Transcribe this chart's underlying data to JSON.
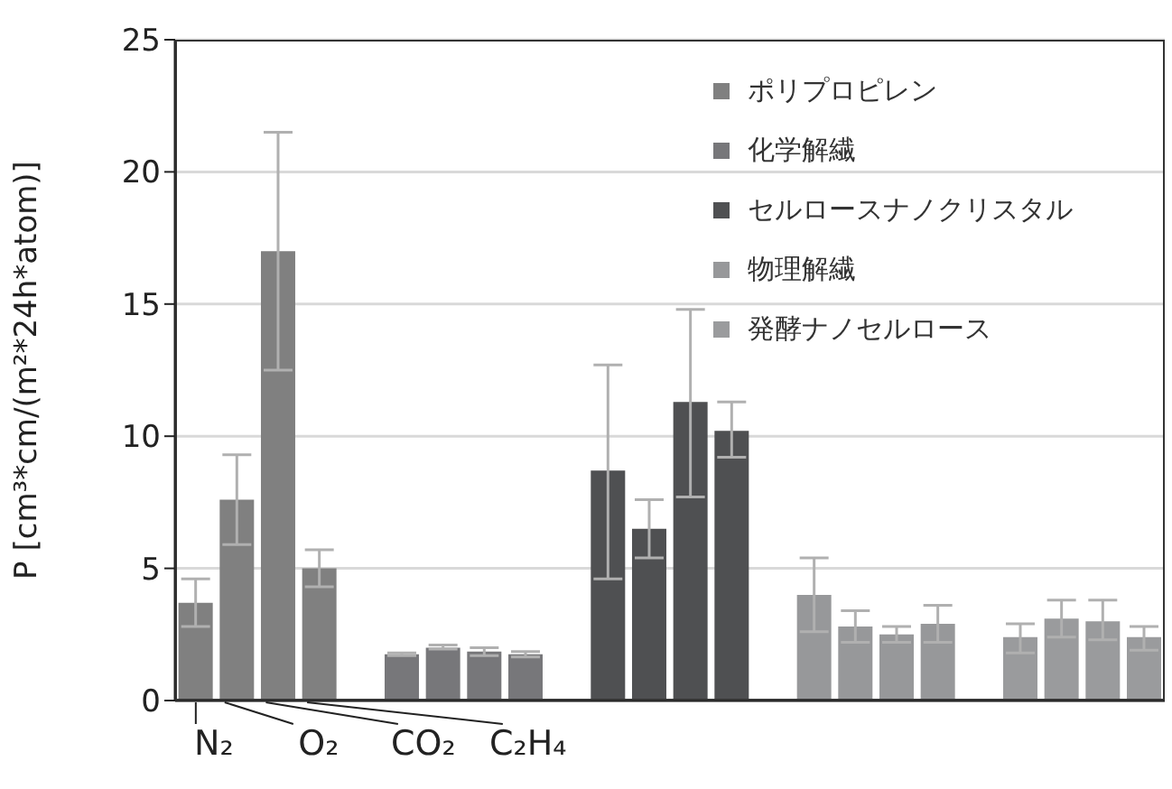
{
  "chart_data": {
    "type": "bar",
    "ylabel": "P [cm³*cm/(m²*24h*atom)]",
    "annotations": [
      "N₂",
      "O₂",
      "CO₂",
      "C₂H₄"
    ],
    "categories": [
      null,
      null,
      null,
      null,
      null,
      null,
      null,
      null,
      null,
      null,
      null,
      null,
      null,
      null,
      null,
      null,
      null,
      null,
      null,
      null,
      null,
      null,
      null,
      null
    ],
    "series": [
      {
        "name": "ポリプロピレン",
        "color": "#808080",
        "values": [
          3.7,
          7.6,
          17.0,
          5.0,
          null,
          null,
          null,
          null,
          null,
          null,
          null,
          null,
          null,
          null,
          null,
          null,
          null,
          null,
          null,
          null,
          null,
          null,
          null,
          null
        ],
        "errors": [
          [
            2.8,
            4.6
          ],
          [
            5.9,
            9.3
          ],
          [
            12.5,
            21.5
          ],
          [
            4.3,
            5.7
          ],
          null,
          null,
          null,
          null,
          null,
          null,
          null,
          null,
          null,
          null,
          null,
          null,
          null,
          null,
          null,
          null,
          null,
          null,
          null,
          null
        ]
      },
      {
        "name": "化学解繊",
        "color": "#77777a",
        "values": [
          null,
          null,
          null,
          null,
          null,
          1.75,
          2.0,
          1.85,
          1.75,
          null,
          null,
          null,
          null,
          null,
          null,
          null,
          null,
          null,
          null,
          null,
          null,
          null,
          null,
          null
        ],
        "errors": [
          null,
          null,
          null,
          null,
          null,
          [
            1.7,
            1.8
          ],
          [
            1.95,
            2.1
          ],
          [
            1.7,
            2.0
          ],
          [
            1.65,
            1.85
          ],
          null,
          null,
          null,
          null,
          null,
          null,
          null,
          null,
          null,
          null,
          null,
          null,
          null,
          null,
          null
        ]
      },
      {
        "name": "セルロースナノクリスタル",
        "color": "#4f5052",
        "values": [
          null,
          null,
          null,
          null,
          null,
          null,
          null,
          null,
          null,
          null,
          8.7,
          6.5,
          11.3,
          10.2,
          null,
          null,
          null,
          null,
          null,
          null,
          null,
          null,
          null,
          null
        ],
        "errors": [
          null,
          null,
          null,
          null,
          null,
          null,
          null,
          null,
          null,
          null,
          [
            4.6,
            12.7
          ],
          [
            5.4,
            7.6
          ],
          [
            7.7,
            14.8
          ],
          [
            9.2,
            11.3
          ],
          null,
          null,
          null,
          null,
          null,
          null,
          null,
          null,
          null,
          null
        ]
      },
      {
        "name": "物理解繊",
        "color": "#97989a",
        "values": [
          null,
          null,
          null,
          null,
          null,
          null,
          null,
          null,
          null,
          null,
          null,
          null,
          null,
          null,
          null,
          4.0,
          2.8,
          2.5,
          2.9,
          null,
          null,
          null,
          null,
          null
        ],
        "errors": [
          null,
          null,
          null,
          null,
          null,
          null,
          null,
          null,
          null,
          null,
          null,
          null,
          null,
          null,
          null,
          [
            2.6,
            5.4
          ],
          [
            2.2,
            3.4
          ],
          [
            2.2,
            2.8
          ],
          [
            2.2,
            3.6
          ],
          null,
          null,
          null,
          null,
          null
        ]
      },
      {
        "name": "発酵ナノセルロース",
        "color": "#9a9b9d",
        "values": [
          null,
          null,
          null,
          null,
          null,
          null,
          null,
          null,
          null,
          null,
          null,
          null,
          null,
          null,
          null,
          null,
          null,
          null,
          null,
          null,
          2.4,
          3.1,
          3.0,
          2.4
        ],
        "errors": [
          null,
          null,
          null,
          null,
          null,
          null,
          null,
          null,
          null,
          null,
          null,
          null,
          null,
          null,
          null,
          null,
          null,
          null,
          null,
          null,
          [
            1.8,
            2.9
          ],
          [
            2.4,
            3.8
          ],
          [
            2.3,
            3.8
          ],
          [
            1.9,
            2.8
          ]
        ]
      }
    ],
    "ylim": [
      0,
      25
    ],
    "yticks": [
      0,
      5,
      10,
      15,
      20,
      25
    ],
    "stacked": true,
    "tick_labels": "y",
    "grid": "y",
    "legend": "top right"
  }
}
